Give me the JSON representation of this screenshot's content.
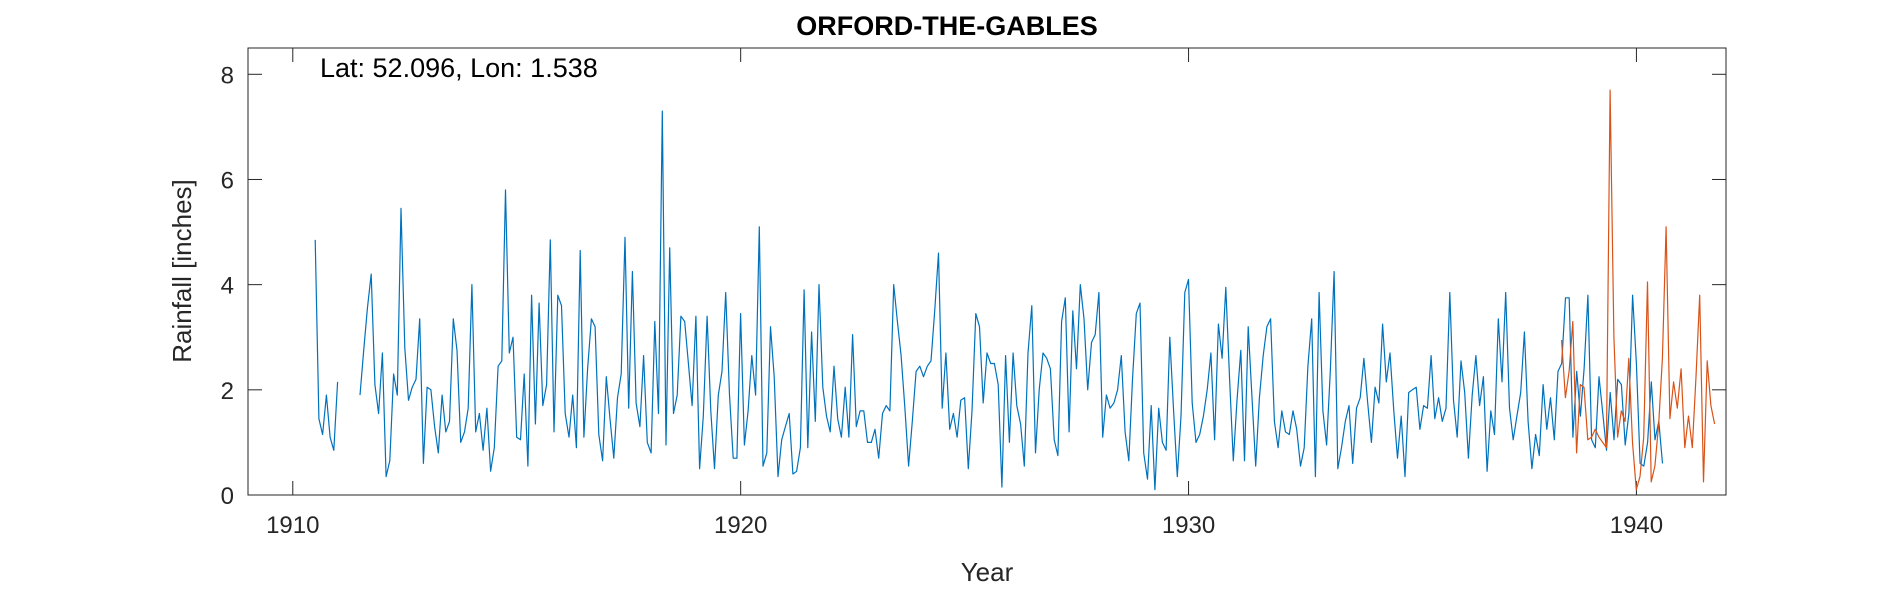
{
  "chart_data": {
    "type": "line",
    "title": "ORFORD-THE-GABLES",
    "annotation": "Lat: 52.096, Lon: 1.538",
    "xlabel": "Year",
    "ylabel": "Rainfall [inches]",
    "xlim": [
      1909,
      1942
    ],
    "ylim": [
      0,
      8.5
    ],
    "xticks": [
      1910,
      1920,
      1930,
      1940
    ],
    "yticks": [
      0,
      2,
      4,
      6,
      8
    ],
    "grid": false,
    "colors": {
      "series1": "#0072BD",
      "series2": "#D95319",
      "axes": "#262626"
    },
    "series": [
      {
        "x_start": 1910.5,
        "step": 0.08333,
        "values": [
          4.85,
          1.45,
          1.15,
          1.9,
          1.1,
          0.85,
          2.15,
          null,
          null,
          null,
          null,
          null,
          1.9,
          2.75,
          3.55,
          4.2,
          2.1,
          1.55,
          2.7,
          0.35,
          0.65,
          2.3,
          1.9,
          5.45,
          2.8,
          1.8,
          2.05,
          2.2,
          3.35,
          0.6,
          2.05,
          2.0,
          1.3,
          0.8,
          1.9,
          1.2,
          1.4,
          3.35,
          2.75,
          1.0,
          1.2,
          1.65,
          4.0,
          1.2,
          1.55,
          0.85,
          1.65,
          0.45,
          0.9,
          2.45,
          2.55,
          5.8,
          2.7,
          3.0,
          1.1,
          1.05,
          2.3,
          0.55,
          3.8,
          1.35,
          3.65,
          1.7,
          2.1,
          4.85,
          1.2,
          3.8,
          3.6,
          1.55,
          1.1,
          1.9,
          0.9,
          4.65,
          1.1,
          2.4,
          3.35,
          3.2,
          1.15,
          0.65,
          2.25,
          1.45,
          0.7,
          1.85,
          2.3,
          4.9,
          1.65,
          4.25,
          1.75,
          1.3,
          2.65,
          1.0,
          0.8,
          3.3,
          1.55,
          7.3,
          0.95,
          4.7,
          1.55,
          1.9,
          3.4,
          3.3,
          2.5,
          1.7,
          3.4,
          0.5,
          1.5,
          3.4,
          1.6,
          0.5,
          1.9,
          2.35,
          3.85,
          1.9,
          0.7,
          0.7,
          3.45,
          0.95,
          1.6,
          2.65,
          1.9,
          5.1,
          0.55,
          0.8,
          3.2,
          2.25,
          0.35,
          1.05,
          1.3,
          1.55,
          0.4,
          0.45,
          0.9,
          3.9,
          0.9,
          3.1,
          1.4,
          4.0,
          2.05,
          1.5,
          1.2,
          2.45,
          1.45,
          1.1,
          2.05,
          1.1,
          3.05,
          1.3,
          1.6,
          1.6,
          1.0,
          1.0,
          1.25,
          0.7,
          1.55,
          1.7,
          1.6,
          4.0,
          3.3,
          2.65,
          1.65,
          0.55,
          1.4,
          2.35,
          2.45,
          2.25,
          2.45,
          2.55,
          3.5,
          4.6,
          1.65,
          2.7,
          1.25,
          1.55,
          1.1,
          1.8,
          1.85,
          0.5,
          1.6,
          3.45,
          3.2,
          1.75,
          2.7,
          2.5,
          2.5,
          2.1,
          0.15,
          2.65,
          1.0,
          2.7,
          1.7,
          1.35,
          0.55,
          2.7,
          3.6,
          0.8,
          2.0,
          2.7,
          2.6,
          2.4,
          1.05,
          0.75,
          3.3,
          3.75,
          1.2,
          3.5,
          2.4,
          4.0,
          3.35,
          2.0,
          2.9,
          3.05,
          3.85,
          1.1,
          1.9,
          1.65,
          1.75,
          2.0,
          2.65,
          1.2,
          0.65,
          2.2,
          3.45,
          3.65,
          0.8,
          0.3,
          1.7,
          0.1,
          1.65,
          1.0,
          0.85,
          3.0,
          1.6,
          0.35,
          1.5,
          3.85,
          4.1,
          1.75,
          1.0,
          1.15,
          1.5,
          2.0,
          2.7,
          1.05,
          3.25,
          2.6,
          3.95,
          2.2,
          0.65,
          1.8,
          2.75,
          0.65,
          3.2,
          1.85,
          0.55,
          1.85,
          2.65,
          3.2,
          3.35,
          1.4,
          0.9,
          1.6,
          1.2,
          1.15,
          1.6,
          1.25,
          0.55,
          0.9,
          2.45,
          3.35,
          0.35,
          3.85,
          1.6,
          0.95,
          2.35,
          4.25,
          0.5,
          0.9,
          1.4,
          1.7,
          0.6,
          1.65,
          1.85,
          2.6,
          1.75,
          1.0,
          2.05,
          1.75,
          3.25,
          2.15,
          2.7,
          1.6,
          0.7,
          1.5,
          0.35,
          1.95,
          2.0,
          2.05,
          1.25,
          1.7,
          1.65,
          2.65,
          1.45,
          1.85,
          1.4,
          1.65,
          3.85,
          1.8,
          1.1,
          2.55,
          1.95,
          0.7,
          1.9,
          2.65,
          1.7,
          2.25,
          0.45,
          1.6,
          1.15,
          3.35,
          2.15,
          3.85,
          1.65,
          1.05,
          1.5,
          1.95,
          3.1,
          1.4,
          0.5,
          1.15,
          0.75,
          2.1,
          1.25,
          1.85,
          1.05,
          2.35,
          2.5,
          3.75,
          3.75,
          1.1,
          2.35,
          1.5,
          2.4,
          3.8,
          1.05,
          0.9,
          2.25,
          1.55,
          0.85,
          1.95,
          1.05,
          2.2,
          2.1,
          0.95,
          1.55,
          3.8,
          2.5,
          0.6,
          0.55,
          1.0,
          2.15,
          1.05,
          1.4,
          0.6
        ]
      },
      {
        "x_start": 1938.33,
        "step": 0.08333,
        "values": [
          2.95,
          1.85,
          2.35,
          3.3,
          0.8,
          2.1,
          2.05,
          1.05,
          1.1,
          1.25,
          1.1,
          1.0,
          0.9,
          7.7,
          3.0,
          1.1,
          1.6,
          1.4,
          2.6,
          1.0,
          0.1,
          0.35,
          1.1,
          4.05,
          0.25,
          0.55,
          1.35,
          2.6,
          5.1,
          1.45,
          2.15,
          1.65,
          2.4,
          0.9,
          1.5,
          0.9,
          2.25,
          3.8,
          0.25,
          2.55,
          1.7,
          1.35
        ]
      }
    ]
  }
}
